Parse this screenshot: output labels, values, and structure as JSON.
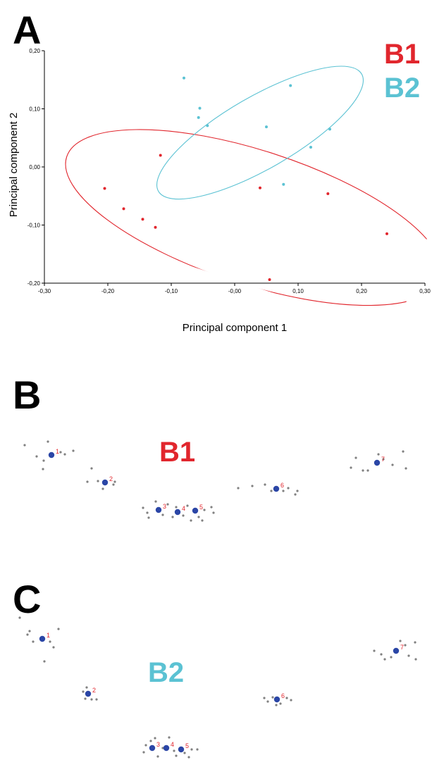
{
  "colors": {
    "b1": "#e1262d",
    "b2": "#5bc2d3",
    "landmark": "#2b46a6",
    "specimen": "#808080",
    "axis": "#000000"
  },
  "panels": {
    "a": "A",
    "b": "B",
    "c": "C"
  },
  "chart_data": {
    "type": "scatter",
    "xlabel": "Principal component 1",
    "ylabel": "Principal component 2",
    "xlim": [
      -0.3,
      0.3
    ],
    "ylim": [
      -0.2,
      0.2
    ],
    "x_ticks": [
      "-0,30",
      "-0,20",
      "-0,10",
      "-0,00",
      "0,10",
      "0,20",
      "0,30"
    ],
    "y_ticks": [
      "0,20",
      "0,10",
      "0,00",
      "-0,10",
      "-0,20"
    ],
    "legend": [
      {
        "label": "B1",
        "color": "#e1262d"
      },
      {
        "label": "B2",
        "color": "#5bc2d3"
      }
    ],
    "legend_position": "top-right",
    "grid": false,
    "series": [
      {
        "name": "B1",
        "color": "#e1262d",
        "points": [
          [
            -0.205,
            -0.037
          ],
          [
            -0.175,
            -0.072
          ],
          [
            -0.145,
            -0.09
          ],
          [
            -0.125,
            -0.104
          ],
          [
            -0.117,
            0.02
          ],
          [
            0.04,
            -0.036
          ],
          [
            0.055,
            -0.194
          ],
          [
            0.147,
            -0.046
          ],
          [
            0.24,
            -0.115
          ]
        ],
        "ellipse": {
          "center": [
            0.03,
            -0.087
          ],
          "semi_axes": [
            0.31,
            0.115
          ],
          "rotation_deg": 18
        }
      },
      {
        "name": "B2",
        "color": "#5bc2d3",
        "points": [
          [
            -0.08,
            0.153
          ],
          [
            -0.055,
            0.101
          ],
          [
            -0.057,
            0.085
          ],
          [
            -0.043,
            0.071
          ],
          [
            0.05,
            0.069
          ],
          [
            0.088,
            0.14
          ],
          [
            0.12,
            0.034
          ],
          [
            0.15,
            0.065
          ],
          [
            0.077,
            -0.03
          ]
        ],
        "ellipse": {
          "center": [
            0.04,
            0.059
          ],
          "semi_axes": [
            0.185,
            0.062
          ],
          "rotation_deg": -30
        }
      }
    ]
  },
  "configs": {
    "b1": {
      "label": "B1",
      "landmarks": [
        {
          "id": "1",
          "pos": [
            73,
            646
          ]
        },
        {
          "id": "2",
          "pos": [
            149,
            685
          ]
        },
        {
          "id": "3",
          "pos": [
            225,
            724
          ]
        },
        {
          "id": "4",
          "pos": [
            252,
            727
          ]
        },
        {
          "id": "5",
          "pos": [
            277,
            725
          ]
        },
        {
          "id": "6",
          "pos": [
            392,
            694
          ]
        },
        {
          "id": "7",
          "pos": [
            535,
            657
          ]
        }
      ],
      "specimens": [
        [
          35,
          632
        ],
        [
          52,
          648
        ],
        [
          62,
          654
        ],
        [
          68,
          627
        ],
        [
          61,
          666
        ],
        [
          92,
          645
        ],
        [
          104,
          640
        ],
        [
          86,
          642
        ],
        [
          130,
          665
        ],
        [
          124,
          684
        ],
        [
          139,
          683
        ],
        [
          161,
          688
        ],
        [
          163,
          684
        ],
        [
          146,
          694
        ],
        [
          203,
          721
        ],
        [
          209,
          728
        ],
        [
          221,
          712
        ],
        [
          231,
          731
        ],
        [
          238,
          716
        ],
        [
          245,
          734
        ],
        [
          250,
          720
        ],
        [
          260,
          732
        ],
        [
          266,
          718
        ],
        [
          282,
          734
        ],
        [
          290,
          724
        ],
        [
          300,
          720
        ],
        [
          303,
          728
        ],
        [
          287,
          739
        ],
        [
          271,
          739
        ],
        [
          211,
          735
        ],
        [
          338,
          693
        ],
        [
          358,
          690
        ],
        [
          376,
          688
        ],
        [
          385,
          697
        ],
        [
          402,
          697
        ],
        [
          409,
          693
        ],
        [
          422,
          697
        ],
        [
          419,
          702
        ],
        [
          498,
          664
        ],
        [
          505,
          650
        ],
        [
          515,
          668
        ],
        [
          522,
          668
        ],
        [
          537,
          645
        ],
        [
          544,
          652
        ],
        [
          557,
          660
        ],
        [
          572,
          641
        ],
        [
          576,
          665
        ]
      ]
    },
    "b2": {
      "label": "B2",
      "landmarks": [
        {
          "id": "1",
          "pos": [
            60,
            907
          ]
        },
        {
          "id": "2",
          "pos": [
            125,
            985
          ]
        },
        {
          "id": "3",
          "pos": [
            216,
            1062
          ]
        },
        {
          "id": "4",
          "pos": [
            236,
            1062
          ]
        },
        {
          "id": "5",
          "pos": [
            257,
            1064
          ]
        },
        {
          "id": "6",
          "pos": [
            393,
            993
          ]
        },
        {
          "id": "7",
          "pos": [
            562,
            924
          ]
        }
      ],
      "specimens": [
        [
          28,
          877
        ],
        [
          39,
          901
        ],
        [
          47,
          911
        ],
        [
          42,
          896
        ],
        [
          63,
          939
        ],
        [
          76,
          919
        ],
        [
          83,
          893
        ],
        [
          71,
          911
        ],
        [
          118,
          982
        ],
        [
          121,
          992
        ],
        [
          130,
          993
        ],
        [
          137,
          993
        ],
        [
          123,
          976
        ],
        [
          207,
          1058
        ],
        [
          214,
          1052
        ],
        [
          220,
          1048
        ],
        [
          224,
          1074
        ],
        [
          231,
          1062
        ],
        [
          240,
          1047
        ],
        [
          247,
          1066
        ],
        [
          250,
          1073
        ],
        [
          262,
          1069
        ],
        [
          272,
          1064
        ],
        [
          280,
          1064
        ],
        [
          268,
          1075
        ],
        [
          204,
          1068
        ],
        [
          375,
          991
        ],
        [
          380,
          996
        ],
        [
          387,
          990
        ],
        [
          398,
          999
        ],
        [
          407,
          991
        ],
        [
          413,
          994
        ],
        [
          392,
          1001
        ],
        [
          531,
          924
        ],
        [
          541,
          929
        ],
        [
          546,
          936
        ],
        [
          555,
          933
        ],
        [
          568,
          910
        ],
        [
          575,
          916
        ],
        [
          580,
          931
        ],
        [
          589,
          912
        ],
        [
          590,
          936
        ]
      ]
    }
  }
}
